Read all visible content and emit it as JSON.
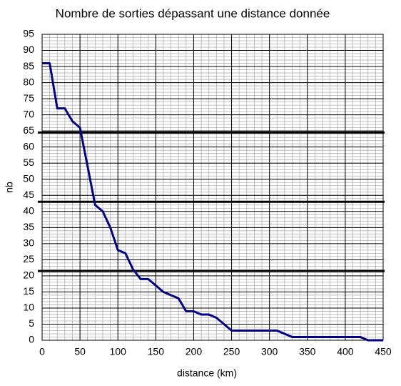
{
  "chart_data": {
    "type": "line",
    "title": "Nombre de sorties dépassant une distance donnée",
    "xlabel": "distance (km)",
    "ylabel": "nb",
    "x": [
      0,
      10,
      20,
      30,
      40,
      50,
      60,
      70,
      80,
      90,
      100,
      110,
      120,
      130,
      140,
      150,
      160,
      170,
      180,
      190,
      200,
      210,
      220,
      230,
      240,
      250,
      260,
      270,
      280,
      290,
      300,
      310,
      320,
      330,
      340,
      350,
      360,
      370,
      380,
      390,
      400,
      410,
      420,
      430,
      440,
      450
    ],
    "series": [
      {
        "name": "nb",
        "color": "#000080",
        "values": [
          86,
          86,
          72,
          72,
          68,
          66,
          54,
          42,
          40,
          35,
          28,
          27,
          22,
          19,
          19,
          17,
          15,
          14,
          13,
          9,
          9,
          8,
          8,
          7,
          5,
          3,
          3,
          3,
          3,
          3,
          3,
          3,
          2,
          1,
          1,
          1,
          1,
          1,
          1,
          1,
          1,
          1,
          1,
          0,
          0,
          0
        ]
      }
    ],
    "xlim": [
      0,
      450
    ],
    "xticks": [
      0,
      50,
      100,
      150,
      200,
      250,
      300,
      350,
      400,
      450
    ],
    "ylim": [
      0,
      95
    ],
    "yticks": [
      0,
      5,
      10,
      15,
      20,
      25,
      30,
      35,
      40,
      45,
      50,
      55,
      60,
      65,
      70,
      75,
      80,
      85,
      90,
      95
    ],
    "grid": true,
    "minor_grid": {
      "x": 10,
      "y": 1
    },
    "hlines": [
      64.5,
      43,
      21.5
    ]
  }
}
